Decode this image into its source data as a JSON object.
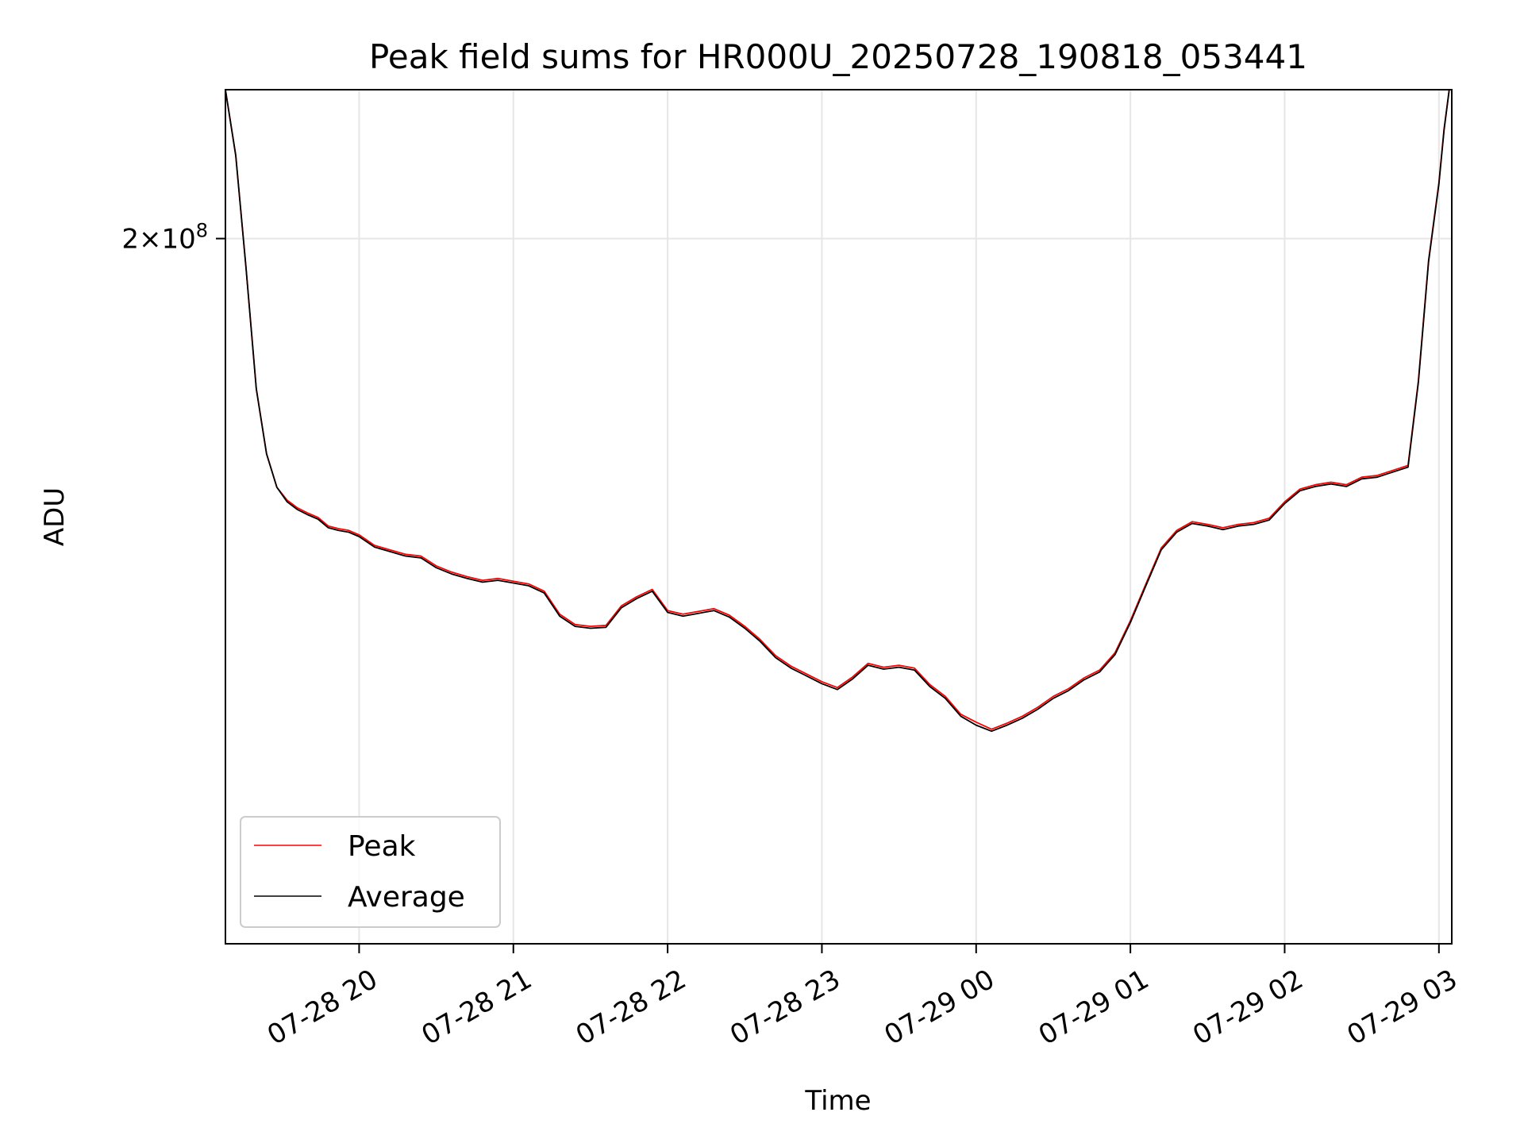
{
  "chart_data": {
    "type": "line",
    "title": "Peak field sums for HR000U_20250728_190818_053441",
    "xlabel": "Time",
    "ylabel": "ADU",
    "yscale": "log",
    "ylim": [
      122000000,
      222000000
    ],
    "yticks": [
      {
        "value": 200000000,
        "label_base": "2",
        "label_exp": "8"
      }
    ],
    "xlim": [
      "07-28 19:08",
      "07-29 03:05"
    ],
    "xtick_labels": [
      "07-28 20",
      "07-28 21",
      "07-28 22",
      "07-28 23",
      "07-29 00",
      "07-29 01",
      "07-29 02",
      "07-29 03"
    ],
    "xticks": [
      "07-28 20:00",
      "07-28 21:00",
      "07-28 22:00",
      "07-28 23:00",
      "07-29 00:00",
      "07-29 01:00",
      "07-29 02:00",
      "07-29 03:00"
    ],
    "grid": true,
    "legend_position": "lower-left",
    "x": [
      "07-28 19:08",
      "07-28 19:12",
      "07-28 19:16",
      "07-28 19:20",
      "07-28 19:24",
      "07-28 19:28",
      "07-28 19:32",
      "07-28 19:36",
      "07-28 19:40",
      "07-28 19:44",
      "07-28 19:48",
      "07-28 19:52",
      "07-28 19:56",
      "07-28 20:00",
      "07-28 20:06",
      "07-28 20:12",
      "07-28 20:18",
      "07-28 20:24",
      "07-28 20:30",
      "07-28 20:36",
      "07-28 20:42",
      "07-28 20:48",
      "07-28 20:54",
      "07-28 21:00",
      "07-28 21:06",
      "07-28 21:12",
      "07-28 21:18",
      "07-28 21:24",
      "07-28 21:30",
      "07-28 21:36",
      "07-28 21:42",
      "07-28 21:48",
      "07-28 21:54",
      "07-28 22:00",
      "07-28 22:06",
      "07-28 22:12",
      "07-28 22:18",
      "07-28 22:24",
      "07-28 22:30",
      "07-28 22:36",
      "07-28 22:42",
      "07-28 22:48",
      "07-28 22:54",
      "07-28 23:00",
      "07-28 23:06",
      "07-28 23:12",
      "07-28 23:18",
      "07-28 23:24",
      "07-28 23:30",
      "07-28 23:36",
      "07-28 23:42",
      "07-28 23:48",
      "07-28 23:54",
      "07-29 00:00",
      "07-29 00:06",
      "07-29 00:12",
      "07-29 00:18",
      "07-29 00:24",
      "07-29 00:30",
      "07-29 00:36",
      "07-29 00:42",
      "07-29 00:48",
      "07-29 00:54",
      "07-29 01:00",
      "07-29 01:06",
      "07-29 01:12",
      "07-29 01:18",
      "07-29 01:24",
      "07-29 01:30",
      "07-29 01:36",
      "07-29 01:42",
      "07-29 01:48",
      "07-29 01:54",
      "07-29 02:00",
      "07-29 02:06",
      "07-29 02:12",
      "07-29 02:18",
      "07-29 02:24",
      "07-29 02:30",
      "07-29 02:36",
      "07-29 02:42",
      "07-29 02:48",
      "07-29 02:52",
      "07-29 02:56",
      "07-29 03:00",
      "07-29 03:02",
      "07-29 03:04"
    ],
    "series": [
      {
        "name": "Peak",
        "color": "#ff0000",
        "values": [
          222000000,
          212000000,
          196000000,
          180000000,
          172000000,
          168000000,
          166500000,
          165600000,
          165000000,
          164500000,
          163500000,
          163200000,
          163000000,
          162500000,
          161300000,
          160800000,
          160300000,
          160100000,
          159000000,
          158300000,
          157800000,
          157400000,
          157600000,
          157300000,
          157000000,
          156200000,
          153700000,
          152600000,
          152400000,
          152500000,
          154600000,
          155600000,
          156400000,
          154100000,
          153700000,
          154000000,
          154300000,
          153600000,
          152400000,
          151000000,
          149300000,
          148200000,
          147400000,
          146600000,
          146000000,
          147100000,
          148500000,
          148100000,
          148300000,
          148000000,
          146300000,
          145100000,
          143300000,
          142500000,
          141800000,
          142400000,
          143100000,
          144000000,
          145100000,
          145900000,
          147000000,
          147800000,
          149600000,
          153000000,
          157000000,
          161000000,
          163000000,
          164000000,
          163700000,
          163300000,
          163700000,
          163900000,
          164400000,
          166300000,
          167800000,
          168300000,
          168600000,
          168300000,
          169200000,
          169400000,
          170000000,
          170600000,
          181000000,
          197000000,
          208000000,
          216000000,
          222000000
        ]
      },
      {
        "name": "Average",
        "color": "#000000",
        "values": [
          222000000,
          212000000,
          196000000,
          180000000,
          172000000,
          168000000,
          166300000,
          165400000,
          164800000,
          164300000,
          163300000,
          163000000,
          162800000,
          162300000,
          161100000,
          160600000,
          160100000,
          159900000,
          158800000,
          158100000,
          157600000,
          157200000,
          157400000,
          157100000,
          156800000,
          156000000,
          153500000,
          152400000,
          152200000,
          152300000,
          154400000,
          155400000,
          156200000,
          153900000,
          153500000,
          153800000,
          154100000,
          153400000,
          152200000,
          150800000,
          149100000,
          148000000,
          147200000,
          146400000,
          145800000,
          146900000,
          148300000,
          147900000,
          148100000,
          147800000,
          146100000,
          144900000,
          143100000,
          142200000,
          141600000,
          142200000,
          142900000,
          143800000,
          144900000,
          145700000,
          146800000,
          147600000,
          149400000,
          152800000,
          156800000,
          160800000,
          162800000,
          163800000,
          163500000,
          163100000,
          163500000,
          163700000,
          164200000,
          166100000,
          167600000,
          168100000,
          168400000,
          168100000,
          169000000,
          169200000,
          169800000,
          170400000,
          180800000,
          196800000,
          207800000,
          215800000,
          222000000
        ]
      }
    ]
  }
}
